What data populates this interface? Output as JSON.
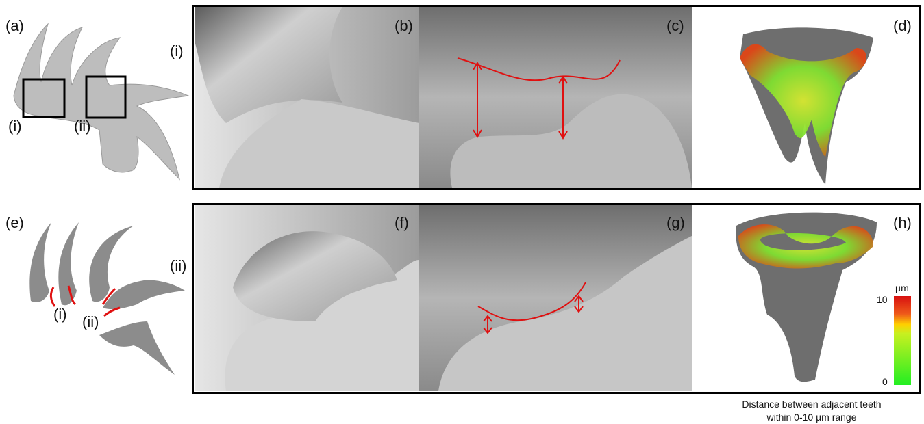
{
  "panel_labels": {
    "a": "(a)",
    "b": "(b)",
    "c": "(c)",
    "d": "(d)",
    "e": "(e)",
    "f": "(f)",
    "g": "(g)",
    "h": "(h)"
  },
  "row_labels": [
    "(i)",
    "(ii)"
  ],
  "panel_a_labels": [
    "(i)",
    "(ii)"
  ],
  "panel_e_labels": [
    "(i)",
    "(ii)"
  ],
  "colorbar": {
    "unit": "µm",
    "max": "10",
    "min": "0"
  },
  "caption": [
    "Distance between adjacent teeth",
    "within 0-10 µm range"
  ]
}
